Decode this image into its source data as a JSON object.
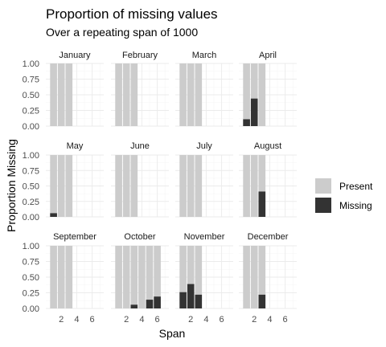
{
  "chart_data": {
    "type": "bar",
    "layout": "facet-grid 4x3",
    "stacked": true,
    "title": "Proportion of missing values",
    "subtitle": "Over a repeating span of 1000",
    "xlabel": "Span",
    "ylabel": "Proportion Missing",
    "xlim": [
      0,
      7.5
    ],
    "ylim": [
      0,
      1.0
    ],
    "x_ticks": [
      2,
      4,
      6
    ],
    "y_ticks": [
      "0.00",
      "0.25",
      "0.50",
      "0.75",
      "1.00"
    ],
    "y_tick_values": [
      0,
      0.25,
      0.5,
      0.75,
      1.0
    ],
    "grid": true,
    "legend": {
      "position": "right",
      "entries": [
        {
          "label": "Present",
          "color": "#cccccc"
        },
        {
          "label": "Missing",
          "color": "#333333"
        }
      ]
    },
    "colors": {
      "present": "#cccccc",
      "missing": "#333333"
    },
    "panels": [
      {
        "month": "January",
        "span": [
          1,
          2,
          3
        ],
        "missing": [
          0,
          0,
          0
        ]
      },
      {
        "month": "February",
        "span": [
          1,
          2,
          3
        ],
        "missing": [
          0,
          0,
          0
        ]
      },
      {
        "month": "March",
        "span": [
          1,
          2,
          3
        ],
        "missing": [
          0,
          0,
          0
        ]
      },
      {
        "month": "April",
        "span": [
          1,
          2,
          3
        ],
        "missing": [
          0.11,
          0.44,
          0
        ]
      },
      {
        "month": "May",
        "span": [
          1,
          2,
          3
        ],
        "missing": [
          0.06,
          0,
          0
        ]
      },
      {
        "month": "June",
        "span": [
          1,
          2,
          3
        ],
        "missing": [
          0,
          0,
          0
        ]
      },
      {
        "month": "July",
        "span": [
          1,
          2,
          3
        ],
        "missing": [
          0,
          0,
          0
        ]
      },
      {
        "month": "August",
        "span": [
          1,
          2,
          3
        ],
        "missing": [
          0,
          0,
          0.41
        ]
      },
      {
        "month": "September",
        "span": [
          1,
          2,
          3
        ],
        "missing": [
          0,
          0,
          0
        ]
      },
      {
        "month": "October",
        "span": [
          1,
          2,
          3,
          4,
          5,
          6
        ],
        "missing": [
          0,
          0,
          0.06,
          0,
          0.14,
          0.19
        ]
      },
      {
        "month": "November",
        "span": [
          1,
          2,
          3
        ],
        "missing": [
          0.26,
          0.39,
          0.22
        ]
      },
      {
        "month": "December",
        "span": [
          1,
          2,
          3
        ],
        "missing": [
          0,
          0,
          0.22
        ]
      }
    ]
  }
}
